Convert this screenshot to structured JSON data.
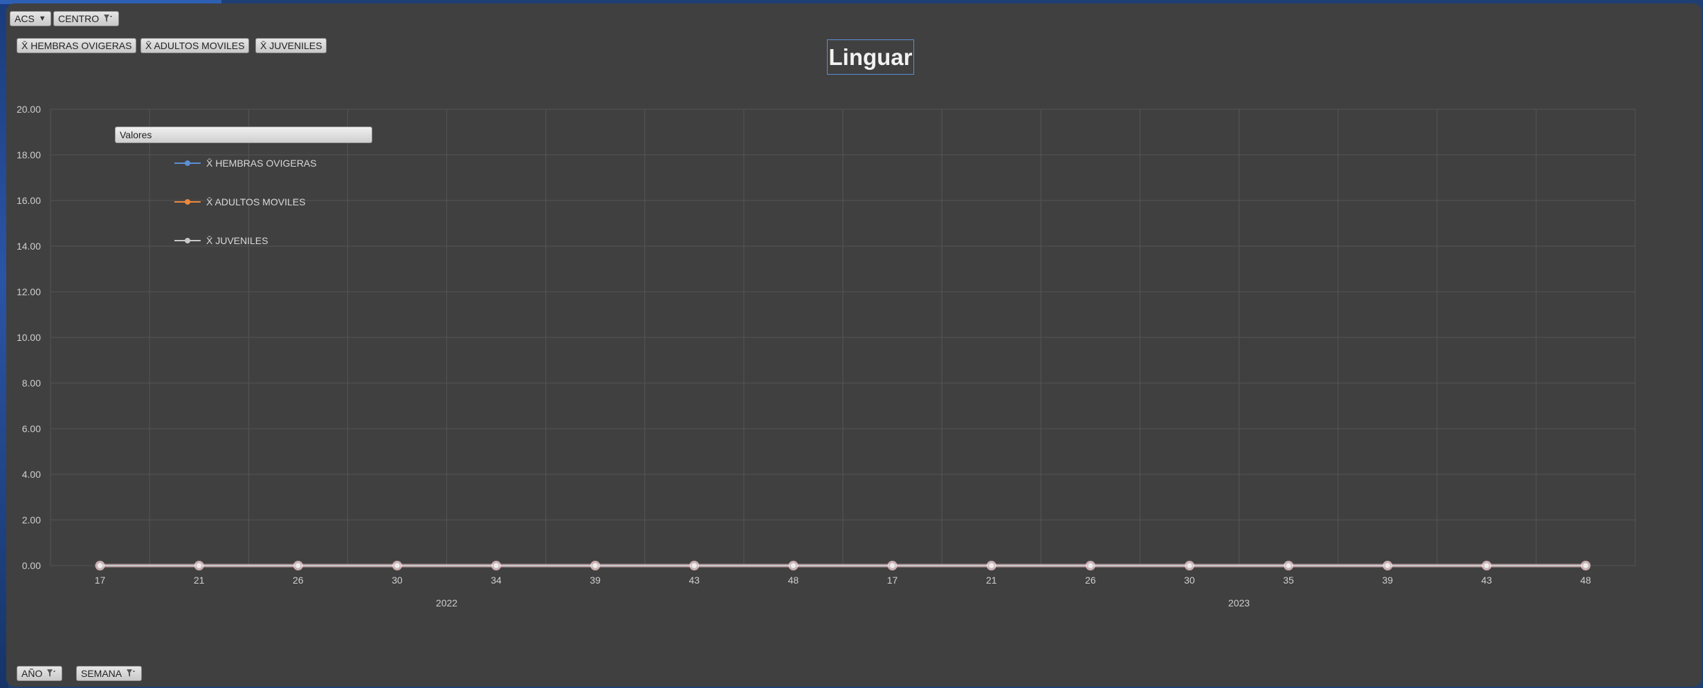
{
  "filters": {
    "acs_label": "ACS",
    "centro_label": "CENTRO",
    "ano_label": "AÑO",
    "semana_label": "SEMANA"
  },
  "value_fields": [
    "X̄ HEMBRAS OVIGERAS",
    "X̄ ADULTOS MOVILES",
    "X̄ JUVENILES"
  ],
  "legend_title": "Valores",
  "colors": {
    "background": "#404040",
    "series_hembras": "#5b8fd6",
    "series_adultos": "#f0883a",
    "series_juveniles": "#c8c8c8"
  },
  "chart_data": {
    "type": "line",
    "title": "Linguar",
    "xlabel": "",
    "ylabel": "",
    "ylim": [
      0,
      20
    ],
    "y_ticks": [
      "0.00",
      "2.00",
      "4.00",
      "6.00",
      "8.00",
      "10.00",
      "12.00",
      "14.00",
      "16.00",
      "18.00",
      "20.00"
    ],
    "grid": true,
    "legend_position": "top-left",
    "groups": [
      {
        "label": "2022",
        "categories": [
          "17",
          "21",
          "26",
          "30",
          "34",
          "39",
          "43",
          "48"
        ]
      },
      {
        "label": "2023",
        "categories": [
          "17",
          "21",
          "26",
          "30",
          "35",
          "39",
          "43",
          "48"
        ]
      }
    ],
    "series": [
      {
        "name": "X̄ HEMBRAS OVIGERAS",
        "values": [
          0,
          0,
          0,
          0,
          0,
          0,
          0,
          0,
          0,
          0,
          0,
          0,
          0,
          0,
          0,
          0
        ]
      },
      {
        "name": "X̄ ADULTOS MOVILES",
        "values": [
          0,
          0,
          0,
          0,
          0,
          0,
          0,
          0,
          0,
          0,
          0,
          0,
          0,
          0,
          0,
          0
        ]
      },
      {
        "name": "X̄ JUVENILES",
        "values": [
          0,
          0,
          0,
          0,
          0,
          0,
          0,
          0,
          0,
          0,
          0,
          0,
          0,
          0,
          0,
          0
        ]
      }
    ]
  }
}
